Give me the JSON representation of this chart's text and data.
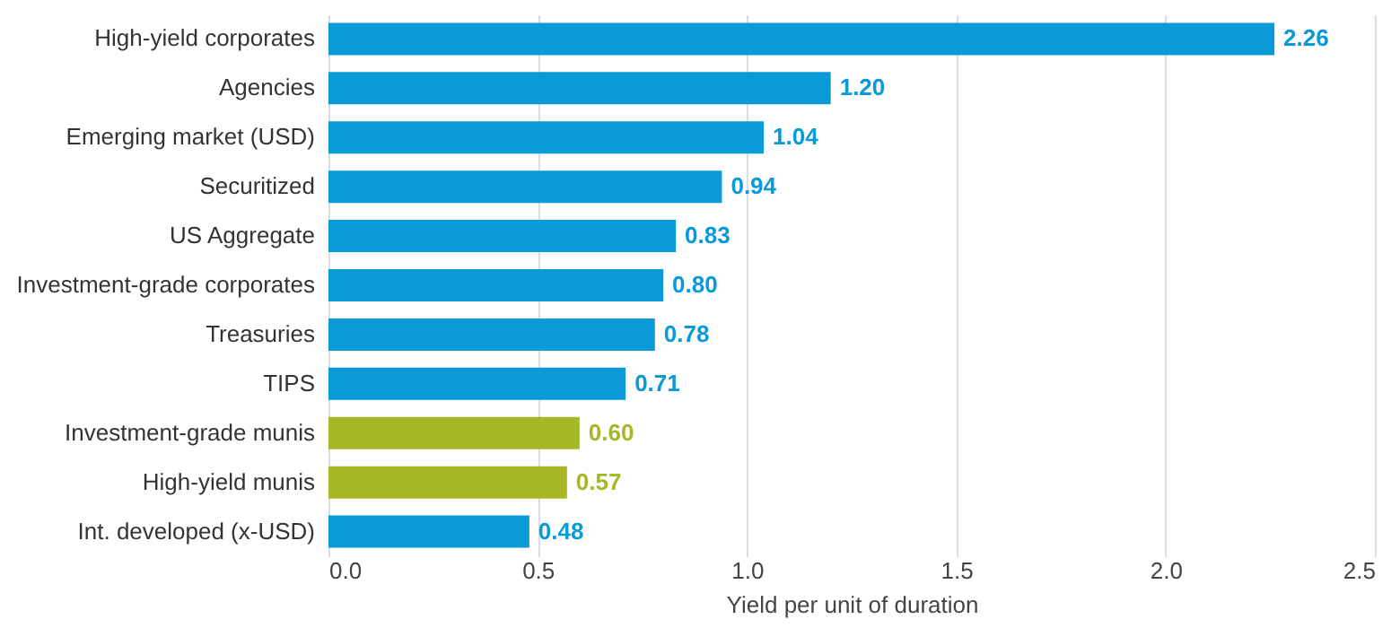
{
  "chart_data": {
    "type": "bar",
    "orientation": "horizontal",
    "xlabel": "Yield per unit of duration",
    "categories": [
      "High-yield corporates",
      "Agencies",
      "Emerging market (USD)",
      "Securitized",
      "US Aggregate",
      "Investment-grade corporates",
      "Treasuries",
      "TIPS",
      "Investment-grade munis",
      "High-yield munis",
      "Int. developed (x-USD)"
    ],
    "values": [
      2.26,
      1.2,
      1.04,
      0.94,
      0.83,
      0.8,
      0.78,
      0.71,
      0.6,
      0.57,
      0.48
    ],
    "value_labels": [
      "2.26",
      "1.20",
      "1.04",
      "0.94",
      "0.83",
      "0.80",
      "0.78",
      "0.71",
      "0.60",
      "0.57",
      "0.48"
    ],
    "colors": [
      "#0a9ad8",
      "#0a9ad8",
      "#0a9ad8",
      "#0a9ad8",
      "#0a9ad8",
      "#0a9ad8",
      "#0a9ad8",
      "#0a9ad8",
      "#a7b826",
      "#a7b826",
      "#0a9ad8"
    ],
    "xlim": [
      0,
      2.5
    ],
    "xticks": [
      {
        "value": 0,
        "label": "0.0"
      },
      {
        "value": 0.5,
        "label": "0.5"
      },
      {
        "value": 1,
        "label": "1.0"
      },
      {
        "value": 1.5,
        "label": "1.5"
      },
      {
        "value": 2,
        "label": "2.0"
      },
      {
        "value": 2.5,
        "label": "2.5"
      }
    ],
    "grid": "x"
  }
}
